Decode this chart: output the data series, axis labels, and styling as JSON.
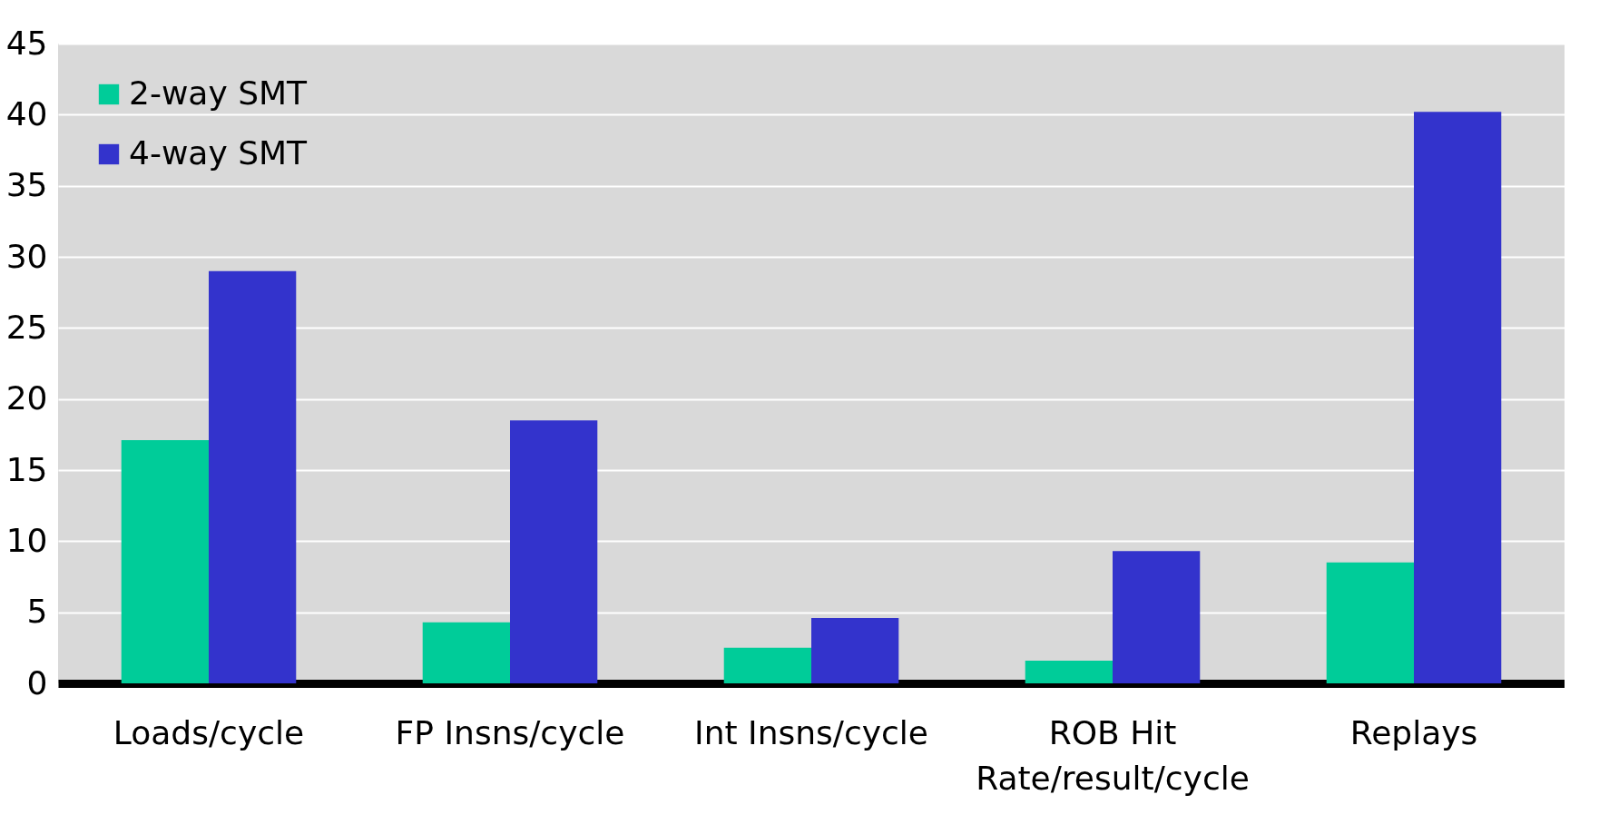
{
  "chart_data": {
    "type": "bar",
    "categories": [
      "Loads/cycle",
      "FP Insns/cycle",
      "Int Insns/cycle",
      "ROB Hit Rate/result/cycle",
      "Replays"
    ],
    "series": [
      {
        "name": "2-way SMT",
        "color": "#00cc99",
        "values": [
          17.1,
          4.3,
          2.5,
          1.6,
          8.5
        ]
      },
      {
        "name": "4-way SMT",
        "color": "#3333cc",
        "values": [
          29.0,
          18.5,
          4.6,
          9.3,
          40.2
        ]
      }
    ],
    "ylim": [
      0,
      45
    ],
    "yticks": [
      0,
      5,
      10,
      15,
      20,
      25,
      30,
      35,
      40,
      45
    ],
    "grid": "y",
    "legend": "top left"
  }
}
